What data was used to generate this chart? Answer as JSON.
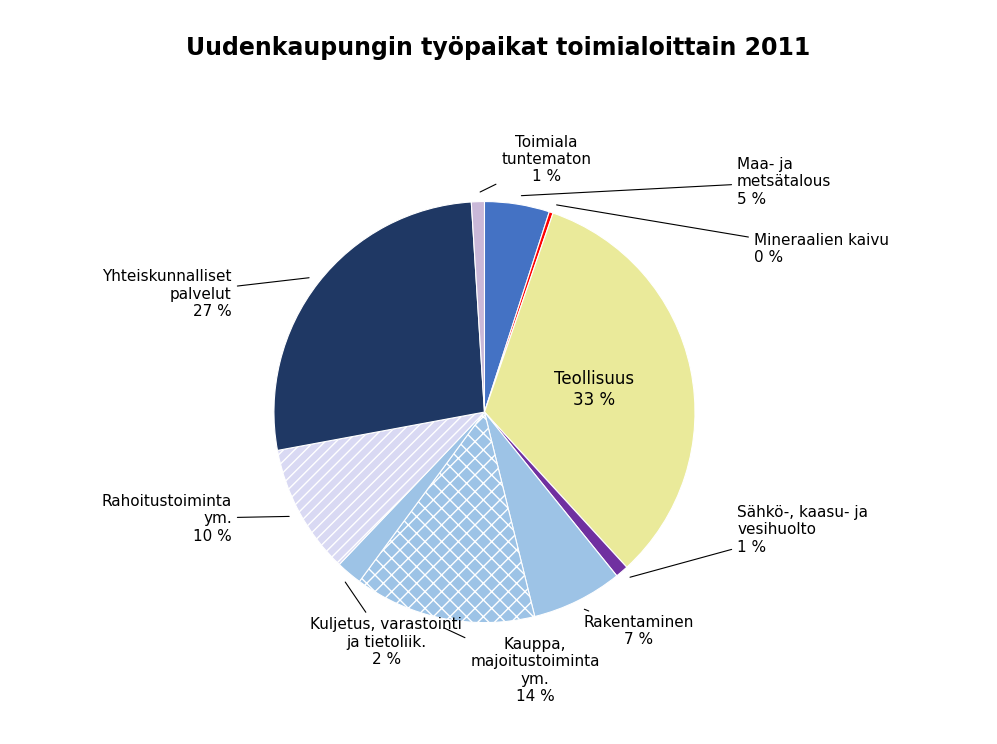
{
  "title": "Uudenkaupungin työpaikat toimialoittain 2011",
  "slices": [
    {
      "label": "Maa- ja\nmetsätalous\n5 %",
      "value": 5,
      "color": "#4472C4",
      "hatch": null
    },
    {
      "label": "Mineraalien kaivu\n0 %",
      "value": 0.3,
      "color": "#FF0000",
      "hatch": null
    },
    {
      "label": "Teollisuus\n33 %",
      "value": 33,
      "color": "#EAEA9A",
      "hatch": null
    },
    {
      "label": "Sähkö-, kaasu- ja\nvesihuolto\n1 %",
      "value": 1,
      "color": "#7030A0",
      "hatch": null
    },
    {
      "label": "Rakentaminen\n7 %",
      "value": 7,
      "color": "#9DC3E6",
      "hatch": null
    },
    {
      "label": "Kauppa,\nmajoitustoiminta\nym.\n14 %",
      "value": 14,
      "color": "#9DC3E6",
      "hatch": "xx"
    },
    {
      "label": "Kuljetus, varastointi\nja tietoliik.\n2 %",
      "value": 2,
      "color": "#9DC3E6",
      "hatch": null
    },
    {
      "label": "Rahoitustoiminta\nym.\n10 %",
      "value": 10,
      "color": "#D9D9F3",
      "hatch": "///"
    },
    {
      "label": "Yhteiskunnalliset\npalvelut\n27 %",
      "value": 27,
      "color": "#1F3864",
      "hatch": null
    },
    {
      "label": "Toimiala\ntuntematon\n1 %",
      "value": 1,
      "color": "#C9B8D8",
      "hatch": null
    }
  ],
  "title_fontsize": 17,
  "label_fontsize": 11,
  "bg_color": "#FFFFFF",
  "figsize": [
    9.97,
    7.44
  ],
  "dpi": 100
}
